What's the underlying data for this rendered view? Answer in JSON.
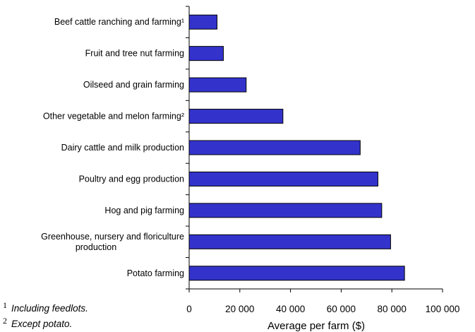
{
  "chart_data": {
    "type": "bar",
    "orientation": "horizontal",
    "title": "",
    "xlabel": "Average per farm ($)",
    "ylabel": "",
    "xlim": [
      0,
      100000
    ],
    "xticks": [
      0,
      20000,
      40000,
      60000,
      80000,
      100000
    ],
    "xtick_labels": [
      "0",
      "20 000",
      "40 000",
      "60 000",
      "80 000",
      "100 000"
    ],
    "grid": false,
    "legend": "none",
    "bar_color": "#3333cc",
    "categories": [
      [
        "Beef cattle ranching and farming¹"
      ],
      [
        "Fruit and tree nut farming"
      ],
      [
        "Oilseed and grain farming"
      ],
      [
        "Other vegetable and melon farming²"
      ],
      [
        "Dairy cattle and milk production"
      ],
      [
        "Poultry and egg production"
      ],
      [
        "Hog and pig farming"
      ],
      [
        "Greenhouse, nursery and floriculture",
        "production"
      ],
      [
        "Potato farming"
      ]
    ],
    "values": [
      11000,
      13500,
      22500,
      37000,
      67500,
      74500,
      76000,
      79500,
      85000
    ]
  },
  "footnotes": [
    {
      "mark": "1",
      "text": "Including feedlots."
    },
    {
      "mark": "2",
      "text": "Except potato."
    }
  ]
}
